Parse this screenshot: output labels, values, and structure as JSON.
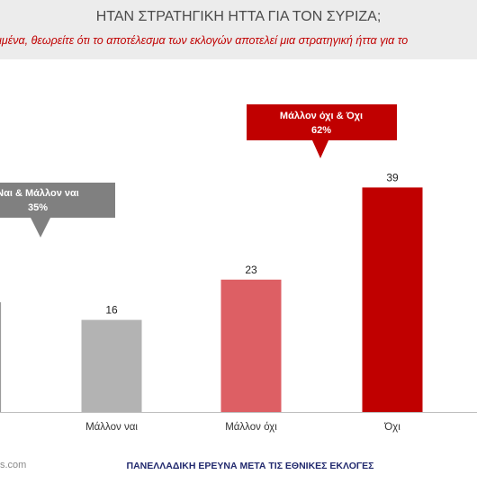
{
  "header": {
    "title": "ΗΤΑΝ ΣΤΡΑΤΗΓΙΚΗ ΗΤΤΑ ΓΙΑ ΤΟΝ ΣΥΡΙΖΑ;",
    "subtitle": "ριμένα, θεωρείτε ότι το αποτέλεσμα των εκλογών αποτελεί μια στρατηγική ήττα για το"
  },
  "callouts": {
    "yes": {
      "line1": "Ναι & Μάλλον ναι",
      "line2": "35%",
      "color": "#808080"
    },
    "no": {
      "line1": "Μάλλον όχι & Όχι",
      "line2": "62%",
      "color": "#c00000"
    }
  },
  "chart_data": {
    "type": "bar",
    "categories": [
      "Μάλλον ναι",
      "Μάλλον όχι",
      "Όχι"
    ],
    "values": [
      16,
      23,
      39
    ],
    "colors": [
      "#b3b3b3",
      "#dd5f64",
      "#c00000"
    ],
    "grid": false,
    "legend": "none"
  },
  "footer": {
    "source": "s.com",
    "note": "ΠΑΝΕΛΛΑΔΙΚΗ ΕΡΕΥΝΑ ΜΕΤΑ ΤΙΣ ΕΘΝΙΚΕΣ ΕΚΛΟΓΕΣ"
  }
}
